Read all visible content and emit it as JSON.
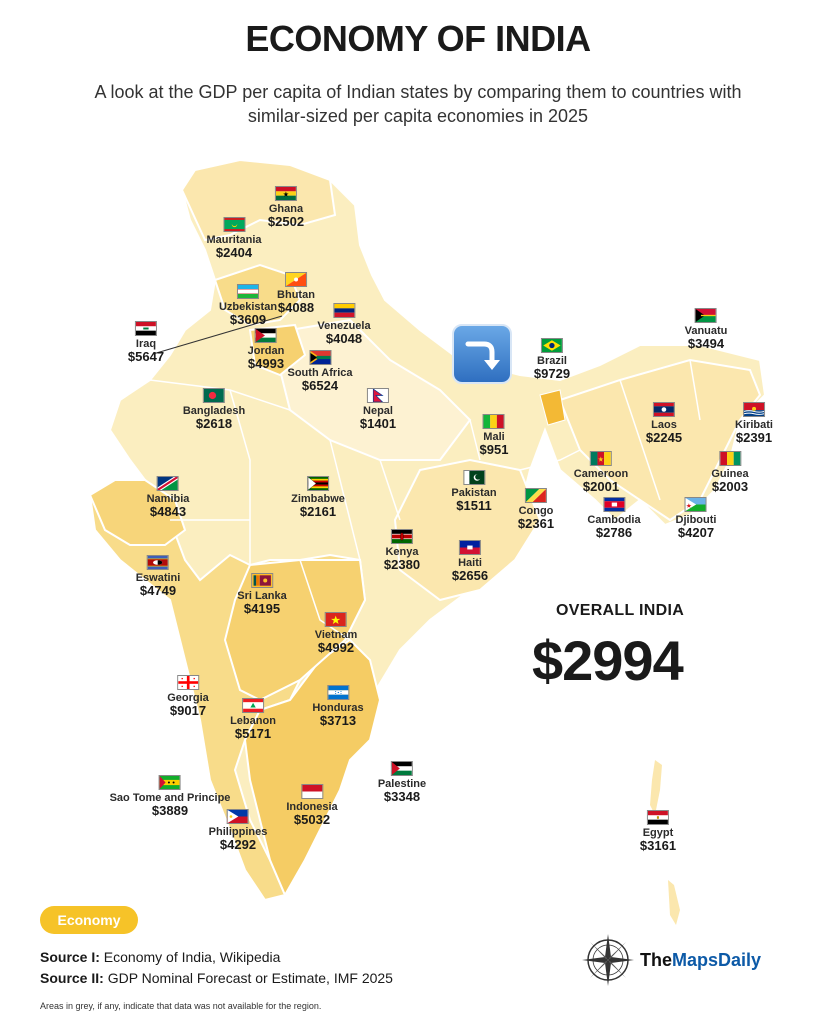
{
  "title": "ECONOMY OF INDIA",
  "subtitle": "A look at the GDP per capita of Indian states by comparing them to countries with similar-sized per capita economies in 2025",
  "overall": {
    "label": "OVERALL INDIA",
    "value": "$2994"
  },
  "badge": "Economy",
  "sources": [
    {
      "label": "Source I:",
      "text": "Economy of India, Wikipedia"
    },
    {
      "label": "Source II:",
      "text": "GDP Nominal Forecast or Estimate, IMF 2025"
    }
  ],
  "note": "Areas in grey, if any, indicate that data was not available for the region.",
  "logo": {
    "pre": "The",
    "brand": "MapsDaily"
  },
  "icon": "arrow-turn-down-icon",
  "colors": {
    "light": "#fbeec0",
    "mid": "#f8df95",
    "dark": "#f5c95a",
    "accent": "#f6c328"
  },
  "regions": [
    {
      "country": "Ghana",
      "gdp": "$2502",
      "flag": "ghana"
    },
    {
      "country": "Mauritania",
      "gdp": "$2404",
      "flag": "mauritania"
    },
    {
      "country": "Bhutan",
      "gdp": "$4088",
      "flag": "bhutan"
    },
    {
      "country": "Uzbekistan",
      "gdp": "$3609",
      "flag": "uzbekistan"
    },
    {
      "country": "Venezuela",
      "gdp": "$4048",
      "flag": "venezuela"
    },
    {
      "country": "Iraq",
      "gdp": "$5647",
      "flag": "iraq"
    },
    {
      "country": "Jordan",
      "gdp": "$4993",
      "flag": "jordan"
    },
    {
      "country": "South Africa",
      "gdp": "$6524",
      "flag": "southafrica"
    },
    {
      "country": "Bangladesh",
      "gdp": "$2618",
      "flag": "bangladesh"
    },
    {
      "country": "Nepal",
      "gdp": "$1401",
      "flag": "nepal"
    },
    {
      "country": "Brazil",
      "gdp": "$9729",
      "flag": "brazil"
    },
    {
      "country": "Vanuatu",
      "gdp": "$3494",
      "flag": "vanuatu"
    },
    {
      "country": "Mali",
      "gdp": "$951",
      "flag": "mali"
    },
    {
      "country": "Laos",
      "gdp": "$2245",
      "flag": "laos"
    },
    {
      "country": "Kiribati",
      "gdp": "$2391",
      "flag": "kiribati"
    },
    {
      "country": "Cameroon",
      "gdp": "$2001",
      "flag": "cameroon"
    },
    {
      "country": "Guinea",
      "gdp": "$2003",
      "flag": "guinea"
    },
    {
      "country": "Namibia",
      "gdp": "$4843",
      "flag": "namibia"
    },
    {
      "country": "Zimbabwe",
      "gdp": "$2161",
      "flag": "zimbabwe"
    },
    {
      "country": "Pakistan",
      "gdp": "$1511",
      "flag": "pakistan"
    },
    {
      "country": "Congo",
      "gdp": "$2361",
      "flag": "congo"
    },
    {
      "country": "Cambodia",
      "gdp": "$2786",
      "flag": "cambodia"
    },
    {
      "country": "Djibouti",
      "gdp": "$4207",
      "flag": "djibouti"
    },
    {
      "country": "Kenya",
      "gdp": "$2380",
      "flag": "kenya"
    },
    {
      "country": "Haiti",
      "gdp": "$2656",
      "flag": "haiti"
    },
    {
      "country": "Eswatini",
      "gdp": "$4749",
      "flag": "eswatini"
    },
    {
      "country": "Sri Lanka",
      "gdp": "$4195",
      "flag": "srilanka"
    },
    {
      "country": "Vietnam",
      "gdp": "$4992",
      "flag": "vietnam"
    },
    {
      "country": "Georgia",
      "gdp": "$9017",
      "flag": "georgia"
    },
    {
      "country": "Lebanon",
      "gdp": "$5171",
      "flag": "lebanon"
    },
    {
      "country": "Honduras",
      "gdp": "$3713",
      "flag": "honduras"
    },
    {
      "country": "Palestine",
      "gdp": "$3348",
      "flag": "palestine"
    },
    {
      "country": "Sao Tome and Principe",
      "gdp": "$3889",
      "flag": "saotome"
    },
    {
      "country": "Indonesia",
      "gdp": "$5032",
      "flag": "indonesia"
    },
    {
      "country": "Philippines",
      "gdp": "$4292",
      "flag": "philippines"
    },
    {
      "country": "Egypt",
      "gdp": "$3161",
      "flag": "egypt"
    }
  ]
}
